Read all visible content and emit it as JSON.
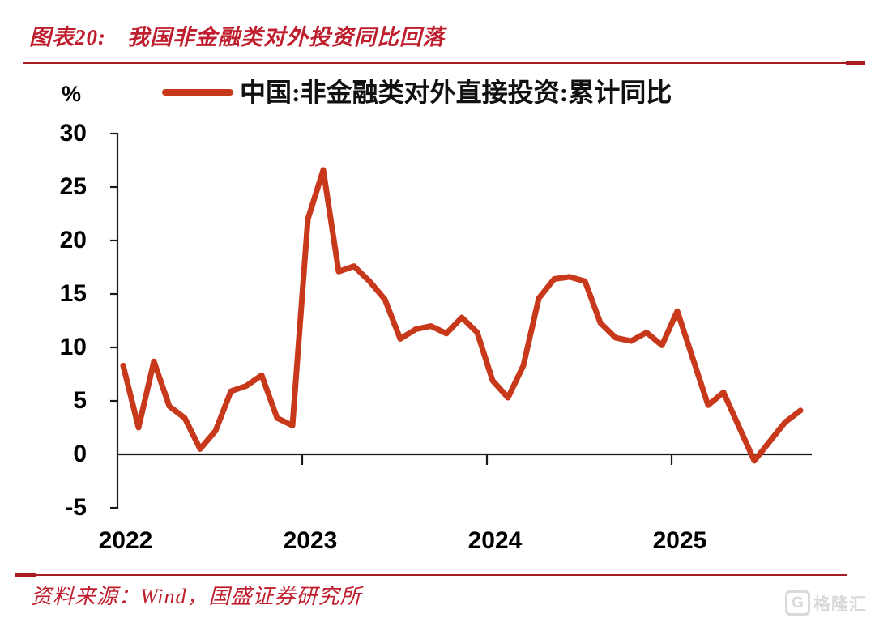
{
  "title": {
    "prefix": "图表20:",
    "text": "我国非金融类对外投资同比回落"
  },
  "legend": {
    "label": "中国:非金融类对外直接投资:累计同比"
  },
  "axes": {
    "unit_label": "%",
    "y_ticks": [
      "30",
      "25",
      "20",
      "15",
      "10",
      "5",
      "0",
      "-5"
    ],
    "y_tick_values": [
      30,
      25,
      20,
      15,
      10,
      5,
      0,
      -5
    ],
    "x_ticks": [
      "2022",
      "2023",
      "2024",
      "2025"
    ]
  },
  "source": {
    "label": "资料来源：Wind，国盛证券研究所"
  },
  "watermark": {
    "icon": "G",
    "label": "格隆汇"
  },
  "colors": {
    "line": "#C8391B",
    "title_red": "#BE1E2D",
    "rule_red": "#A81D22",
    "axis": "#1A1A1A",
    "watermark_gray": "#D7D9DA"
  },
  "chart_data": {
    "type": "line",
    "title": "中国:非金融类对外直接投资:累计同比",
    "xlabel": "",
    "ylabel": "%",
    "ylim": [
      -5,
      30
    ],
    "grid": false,
    "legend_position": "top",
    "x_ticks": [
      "2022",
      "2023",
      "2024",
      "2025"
    ],
    "x": [
      "2022-01",
      "2022-02",
      "2022-03",
      "2022-04",
      "2022-05",
      "2022-06",
      "2022-07",
      "2022-08",
      "2022-09",
      "2022-10",
      "2022-11",
      "2022-12",
      "2023-01",
      "2023-02",
      "2023-03",
      "2023-04",
      "2023-05",
      "2023-06",
      "2023-07",
      "2023-08",
      "2023-09",
      "2023-10",
      "2023-11",
      "2023-12",
      "2024-01",
      "2024-02",
      "2024-03",
      "2024-04",
      "2024-05",
      "2024-06",
      "2024-07",
      "2024-08",
      "2024-09",
      "2024-10",
      "2024-11",
      "2024-12",
      "2025-01",
      "2025-02",
      "2025-03",
      "2025-04",
      "2025-05",
      "2025-06",
      "2025-07",
      "2025-08",
      "2025-09"
    ],
    "series": [
      {
        "name": "中国:非金融类对外直接投资:累计同比",
        "values": [
          8.3,
          2.5,
          8.7,
          4.5,
          3.4,
          0.5,
          2.2,
          5.9,
          6.4,
          7.4,
          3.4,
          2.7,
          22.0,
          26.6,
          17.1,
          17.6,
          16.2,
          14.5,
          10.8,
          11.7,
          12.0,
          11.3,
          12.8,
          11.4,
          6.9,
          5.3,
          8.3,
          14.6,
          16.4,
          16.6,
          16.2,
          12.3,
          10.9,
          10.6,
          11.4,
          10.2,
          13.4,
          9.0,
          4.6,
          5.8,
          2.6,
          -0.6,
          1.2,
          3.0,
          4.1
        ]
      }
    ]
  }
}
